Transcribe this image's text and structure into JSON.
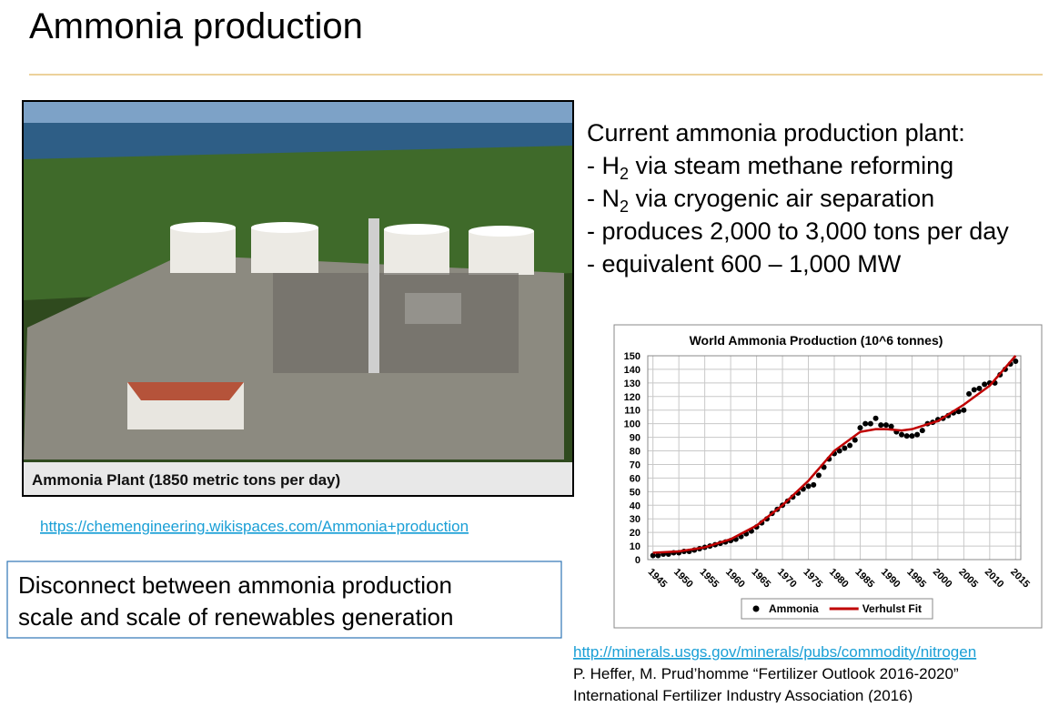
{
  "title": "Ammonia production",
  "photo": {
    "caption": "Ammonia Plant (1850 metric tons per day)"
  },
  "photo_link": "https://chemengineering.wikispaces.com/Ammonia+production",
  "callout": [
    "Disconnect between ammonia production",
    "scale and scale of renewables generation"
  ],
  "summary": {
    "heading": "Current ammonia production plant:",
    "items": [
      {
        "text": "- H",
        "sub": "2",
        "rest": " via steam methane reforming"
      },
      {
        "text": "- N",
        "sub": "2",
        "rest": " via cryogenic air separation"
      },
      {
        "text": "- produces 2,000 to 3,000 tons per day"
      },
      {
        "text": "- equivalent 600 – 1,000 MW"
      }
    ]
  },
  "references": {
    "link": "http://minerals.usgs.gov/minerals/pubs/commodity/nitrogen",
    "lines": [
      "P. Heffer, M. Prud’homme “Fertilizer Outlook 2016-2020”",
      "International Fertilizer Industry Association (2016)"
    ]
  },
  "chart_data": {
    "type": "scatter",
    "title": "World Ammonia Production (10^6 tonnes)",
    "xlim": [
      1944,
      2016
    ],
    "ylim": [
      0,
      150
    ],
    "xticks": [
      1945,
      1950,
      1955,
      1960,
      1965,
      1970,
      1975,
      1980,
      1985,
      1990,
      1995,
      2000,
      2005,
      2010,
      2015
    ],
    "yticks": [
      0,
      10,
      20,
      30,
      40,
      50,
      60,
      70,
      80,
      90,
      100,
      110,
      120,
      130,
      140,
      150
    ],
    "grid": true,
    "series": [
      {
        "name": "Ammonia",
        "color": "#000000",
        "kind": "points",
        "x": [
          1945,
          1946,
          1947,
          1948,
          1949,
          1950,
          1951,
          1952,
          1953,
          1954,
          1955,
          1956,
          1957,
          1958,
          1959,
          1960,
          1961,
          1962,
          1963,
          1964,
          1965,
          1966,
          1967,
          1968,
          1969,
          1970,
          1971,
          1972,
          1973,
          1974,
          1975,
          1976,
          1977,
          1978,
          1979,
          1980,
          1981,
          1982,
          1983,
          1984,
          1985,
          1986,
          1987,
          1988,
          1989,
          1990,
          1991,
          1992,
          1993,
          1994,
          1995,
          1996,
          1997,
          1998,
          1999,
          2000,
          2001,
          2002,
          2003,
          2004,
          2005,
          2006,
          2007,
          2008,
          2009,
          2010,
          2011,
          2012,
          2013,
          2014,
          2015
        ],
        "values": [
          3,
          3,
          4,
          4,
          5,
          5,
          6,
          6,
          7,
          8,
          9,
          10,
          11,
          12,
          13,
          14,
          15,
          17,
          19,
          21,
          24,
          27,
          30,
          34,
          37,
          40,
          43,
          46,
          49,
          52,
          54,
          55,
          62,
          68,
          74,
          78,
          80,
          82,
          84,
          88,
          97,
          100,
          100,
          104,
          99,
          99,
          98,
          94,
          92,
          91,
          91,
          92,
          95,
          100,
          101,
          103,
          104,
          106,
          108,
          109,
          110,
          122,
          125,
          126,
          129,
          130,
          130,
          136,
          140,
          144,
          146
        ]
      },
      {
        "name": "Verhulst Fit",
        "color": "#c00000",
        "kind": "line",
        "x": [
          1945,
          1950,
          1955,
          1960,
          1965,
          1970,
          1975,
          1980,
          1985,
          1988,
          1990,
          1993,
          1995,
          2000,
          2005,
          2010,
          2015
        ],
        "values": [
          5,
          6,
          9,
          15,
          25,
          40,
          58,
          80,
          94,
          96,
          96,
          95,
          96,
          102,
          114,
          128,
          150
        ]
      }
    ]
  }
}
